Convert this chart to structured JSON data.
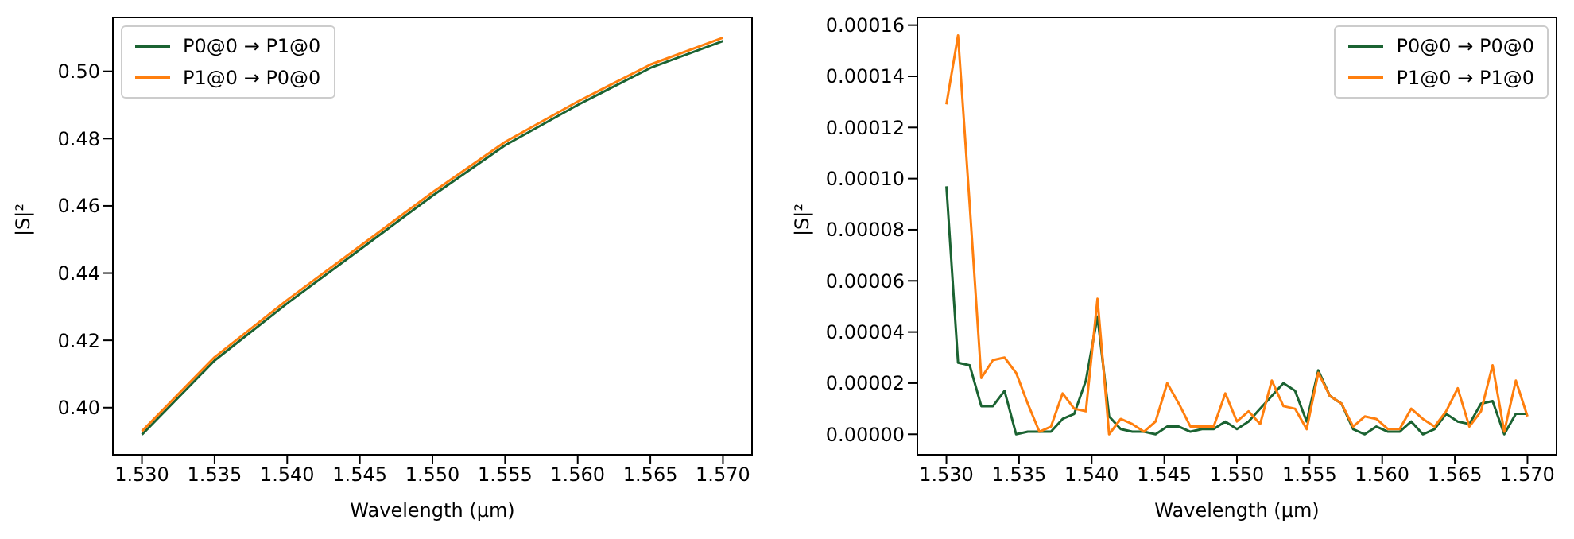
{
  "chart_data": [
    {
      "type": "line",
      "xlabel": "Wavelength (µm)",
      "ylabel": "|S|²",
      "x": [
        1.53,
        1.535,
        1.54,
        1.545,
        1.55,
        1.555,
        1.56,
        1.565,
        1.57
      ],
      "series": [
        {
          "name": "P0@0 → P1@0",
          "color": "#1b6332",
          "values": [
            0.392,
            0.414,
            0.431,
            0.447,
            0.463,
            0.478,
            0.49,
            0.501,
            0.509
          ]
        },
        {
          "name": "P1@0 → P0@0",
          "color": "#ff7f0e",
          "values": [
            0.393,
            0.415,
            0.432,
            0.448,
            0.464,
            0.479,
            0.491,
            0.502,
            0.51
          ]
        }
      ],
      "xlim": [
        1.528,
        1.572
      ],
      "ylim": [
        0.386,
        0.516
      ],
      "xticks": [
        {
          "value": 1.53,
          "label": "1.530"
        },
        {
          "value": 1.535,
          "label": "1.535"
        },
        {
          "value": 1.54,
          "label": "1.540"
        },
        {
          "value": 1.545,
          "label": "1.545"
        },
        {
          "value": 1.55,
          "label": "1.550"
        },
        {
          "value": 1.555,
          "label": "1.555"
        },
        {
          "value": 1.56,
          "label": "1.560"
        },
        {
          "value": 1.565,
          "label": "1.565"
        },
        {
          "value": 1.57,
          "label": "1.570"
        }
      ],
      "yticks": [
        {
          "value": 0.4,
          "label": "0.40"
        },
        {
          "value": 0.42,
          "label": "0.42"
        },
        {
          "value": 0.44,
          "label": "0.44"
        },
        {
          "value": 0.46,
          "label": "0.46"
        },
        {
          "value": 0.48,
          "label": "0.48"
        },
        {
          "value": 0.5,
          "label": "0.50"
        }
      ],
      "legend": "top left"
    },
    {
      "type": "line",
      "xlabel": "Wavelength (µm)",
      "ylabel": "|S|²",
      "x": [
        1.53,
        1.5308,
        1.5316,
        1.5324,
        1.5332,
        1.534,
        1.5348,
        1.5356,
        1.5364,
        1.5372,
        1.538,
        1.5388,
        1.5396,
        1.5404,
        1.5412,
        1.542,
        1.5428,
        1.5436,
        1.5444,
        1.5452,
        1.546,
        1.5468,
        1.5476,
        1.5484,
        1.5492,
        1.55,
        1.5508,
        1.5516,
        1.5524,
        1.5532,
        1.554,
        1.5548,
        1.5556,
        1.5564,
        1.5572,
        1.558,
        1.5588,
        1.5596,
        1.5604,
        1.5612,
        1.562,
        1.5628,
        1.5636,
        1.5644,
        1.5652,
        1.566,
        1.5668,
        1.5676,
        1.5684,
        1.5692,
        1.57
      ],
      "series": [
        {
          "name": "P0@0 → P0@0",
          "color": "#1b6332",
          "values": [
            9.7e-05,
            2.8e-05,
            2.7e-05,
            1.1e-05,
            1.1e-05,
            1.7e-05,
            0.0,
            1e-06,
            1e-06,
            1e-06,
            6e-06,
            8e-06,
            2.1e-05,
            4.6e-05,
            7e-06,
            2e-06,
            1e-06,
            1e-06,
            0.0,
            3e-06,
            3e-06,
            1e-06,
            2e-06,
            2e-06,
            5e-06,
            2e-06,
            5e-06,
            1e-05,
            1.5e-05,
            2e-05,
            1.7e-05,
            5e-06,
            2.5e-05,
            1.5e-05,
            1.2e-05,
            2e-06,
            0.0,
            3e-06,
            1e-06,
            1e-06,
            5e-06,
            0.0,
            2e-06,
            8e-06,
            5e-06,
            4e-06,
            1.2e-05,
            1.3e-05,
            0.0,
            8e-06,
            8e-06
          ]
        },
        {
          "name": "P1@0 → P1@0",
          "color": "#ff7f0e",
          "values": [
            0.000129,
            0.000156,
            9e-05,
            2.2e-05,
            2.9e-05,
            3e-05,
            2.4e-05,
            1.2e-05,
            1e-06,
            3e-06,
            1.6e-05,
            1e-05,
            9e-06,
            5.3e-05,
            0.0,
            6e-06,
            4e-06,
            1e-06,
            5e-06,
            2e-05,
            1.2e-05,
            3e-06,
            3e-06,
            3e-06,
            1.6e-05,
            5e-06,
            9e-06,
            4e-06,
            2.1e-05,
            1.1e-05,
            1e-05,
            2e-06,
            2.4e-05,
            1.5e-05,
            1.2e-05,
            3e-06,
            7e-06,
            6e-06,
            2e-06,
            2e-06,
            1e-05,
            6e-06,
            3e-06,
            9e-06,
            1.8e-05,
            3e-06,
            9e-06,
            2.7e-05,
            1e-06,
            2.1e-05,
            7e-06
          ]
        }
      ],
      "xlim": [
        1.528,
        1.572
      ],
      "ylim": [
        -8e-06,
        0.000163
      ],
      "xticks": [
        {
          "value": 1.53,
          "label": "1.530"
        },
        {
          "value": 1.535,
          "label": "1.535"
        },
        {
          "value": 1.54,
          "label": "1.540"
        },
        {
          "value": 1.545,
          "label": "1.545"
        },
        {
          "value": 1.55,
          "label": "1.550"
        },
        {
          "value": 1.555,
          "label": "1.555"
        },
        {
          "value": 1.56,
          "label": "1.560"
        },
        {
          "value": 1.565,
          "label": "1.565"
        },
        {
          "value": 1.57,
          "label": "1.570"
        }
      ],
      "yticks": [
        {
          "value": 0,
          "label": "0.00000"
        },
        {
          "value": 2e-05,
          "label": "0.00002"
        },
        {
          "value": 4e-05,
          "label": "0.00004"
        },
        {
          "value": 6e-05,
          "label": "0.00006"
        },
        {
          "value": 8e-05,
          "label": "0.00008"
        },
        {
          "value": 0.0001,
          "label": "0.00010"
        },
        {
          "value": 0.00012,
          "label": "0.00012"
        },
        {
          "value": 0.00014,
          "label": "0.00014"
        },
        {
          "value": 0.00016,
          "label": "0.00016"
        }
      ],
      "legend": "top right"
    }
  ]
}
